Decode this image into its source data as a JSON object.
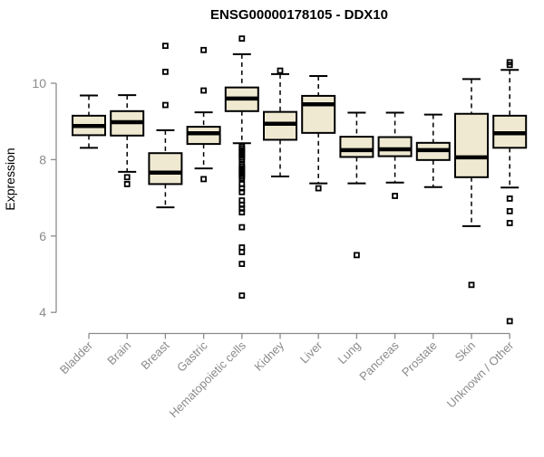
{
  "chart_data": {
    "type": "boxplot",
    "title": "ENSG00000178105 - DDX10",
    "ylabel": "Expression",
    "xlabel": "",
    "y_ticks": [
      10,
      8,
      6,
      4
    ],
    "ylim": [
      3.6,
      11.3
    ],
    "grid": false,
    "legend": "none",
    "colors": {
      "box_fill": "#EFE9D1",
      "box_stroke": "#000000",
      "median": "#000000",
      "axis": "#8B8B8B",
      "axis_text": "#8B8B8B",
      "title_text": "#000000"
    },
    "categories": [
      "Bladder",
      "Brain",
      "Breast",
      "Gastric",
      "Hematopoietic cells",
      "Kidney",
      "Liver",
      "Lung",
      "Pancreas",
      "Prostate",
      "Skin",
      "Unknown / Other"
    ],
    "boxes": [
      {
        "category": "Bladder",
        "whisker_low": 8.31,
        "q1": 8.64,
        "median": 8.88,
        "q3": 9.15,
        "whisker_high": 9.68,
        "outliers": []
      },
      {
        "category": "Brain",
        "whisker_low": 7.68,
        "q1": 8.63,
        "median": 8.98,
        "q3": 9.27,
        "whisker_high": 9.69,
        "outliers": [
          7.54,
          7.36
        ]
      },
      {
        "category": "Breast",
        "whisker_low": 6.75,
        "q1": 7.36,
        "median": 7.66,
        "q3": 8.17,
        "whisker_high": 8.77,
        "outliers": [
          10.98,
          10.3,
          9.43
        ]
      },
      {
        "category": "Gastric",
        "whisker_low": 7.77,
        "q1": 8.41,
        "median": 8.69,
        "q3": 8.86,
        "whisker_high": 9.24,
        "outliers": [
          10.87,
          9.81,
          7.49
        ]
      },
      {
        "category": "Hematopoietic cells",
        "whisker_low": 8.43,
        "q1": 9.27,
        "median": 9.6,
        "q3": 9.89,
        "whisker_high": 10.76,
        "outliers": [
          11.17,
          8.35,
          8.3,
          8.25,
          8.2,
          8.15,
          8.1,
          8.05,
          8.0,
          7.87,
          7.82,
          7.77,
          7.72,
          7.67,
          7.62,
          7.57,
          7.52,
          7.36,
          7.25,
          7.15,
          6.93,
          6.82,
          6.72,
          6.62,
          6.23,
          5.7,
          5.58,
          5.27,
          4.44
        ]
      },
      {
        "category": "Kidney",
        "whisker_low": 7.56,
        "q1": 8.52,
        "median": 8.94,
        "q3": 9.25,
        "whisker_high": 10.24,
        "outliers": [
          10.33
        ]
      },
      {
        "category": "Liver",
        "whisker_low": 7.38,
        "q1": 8.7,
        "median": 9.45,
        "q3": 9.67,
        "whisker_high": 10.19,
        "outliers": [
          7.25
        ]
      },
      {
        "category": "Lung",
        "whisker_low": 7.38,
        "q1": 8.07,
        "median": 8.25,
        "q3": 8.6,
        "whisker_high": 9.23,
        "outliers": [
          5.5
        ]
      },
      {
        "category": "Pancreas",
        "whisker_low": 7.4,
        "q1": 8.09,
        "median": 8.27,
        "q3": 8.59,
        "whisker_high": 9.23,
        "outliers": [
          7.05
        ]
      },
      {
        "category": "Prostate",
        "whisker_low": 7.28,
        "q1": 7.99,
        "median": 8.25,
        "q3": 8.44,
        "whisker_high": 9.18,
        "outliers": []
      },
      {
        "category": "Skin",
        "whisker_low": 6.26,
        "q1": 7.54,
        "median": 8.06,
        "q3": 9.2,
        "whisker_high": 10.11,
        "outliers": [
          4.72
        ]
      },
      {
        "category": "Unknown / Other",
        "whisker_low": 7.27,
        "q1": 8.31,
        "median": 8.69,
        "q3": 9.15,
        "whisker_high": 10.35,
        "outliers": [
          10.55,
          10.48,
          6.98,
          6.65,
          6.34,
          3.77
        ]
      }
    ]
  }
}
